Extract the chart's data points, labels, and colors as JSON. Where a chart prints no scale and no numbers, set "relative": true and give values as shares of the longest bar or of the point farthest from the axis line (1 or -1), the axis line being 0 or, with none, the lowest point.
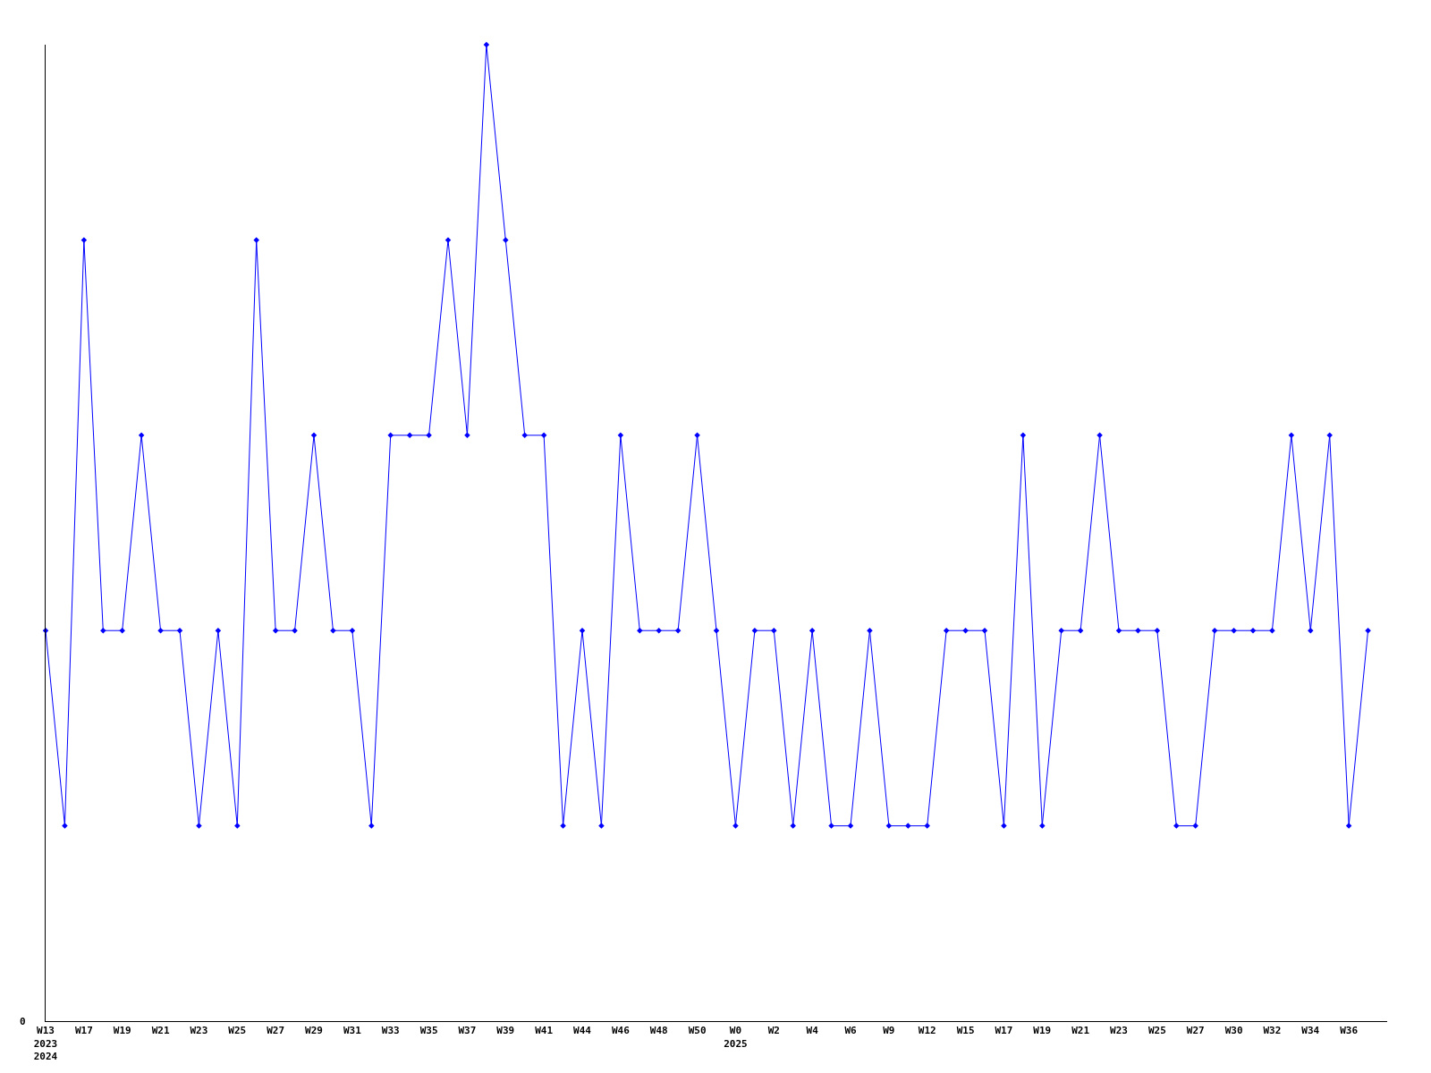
{
  "chart_data": {
    "type": "line",
    "relative": true,
    "marker": "diamond",
    "line_style": "solid",
    "legend": false,
    "annotations": [
      "0"
    ],
    "categories": [
      "W13\n2023\n2024",
      null,
      "W17",
      null,
      "W19",
      null,
      "W21",
      null,
      "W23",
      null,
      "W25",
      null,
      "W27",
      null,
      "W29",
      null,
      "W31",
      null,
      "W33",
      null,
      "W35",
      null,
      "W37",
      null,
      "W39",
      null,
      "W41",
      null,
      "W44",
      null,
      "W46",
      null,
      "W48",
      null,
      "W50",
      null,
      "W0\n2025",
      null,
      "W2",
      null,
      "W4",
      null,
      "W6",
      null,
      "W9",
      null,
      "W12",
      null,
      "W15",
      null,
      "W17",
      null,
      "W19",
      null,
      "W21",
      null,
      "W23",
      null,
      "W25",
      null,
      "W27",
      null,
      "W30",
      null,
      "W32",
      null,
      "W34",
      null,
      "W36",
      null
    ],
    "series": [
      {
        "color": "#0000ff",
        "values": [
          0.4,
          0.2,
          0.8,
          0.4,
          0.4,
          0.6,
          0.4,
          0.4,
          0.2,
          0.4,
          0.2,
          0.8,
          0.4,
          0.4,
          0.6,
          0.4,
          0.4,
          0.2,
          0.6,
          0.6,
          0.6,
          0.8,
          0.6,
          1,
          0.8,
          0.6,
          0.6,
          0.2,
          0.4,
          0.2,
          0.6,
          0.4,
          0.4,
          0.4,
          0.6,
          0.4,
          0.2,
          0.4,
          0.4,
          0.2,
          0.4,
          0.2,
          0.2,
          0.4,
          0.2,
          0.2,
          0.2,
          0.4,
          0.4,
          0.4,
          0.2,
          0.6,
          0.2,
          0.4,
          0.4,
          0.6,
          0.4,
          0.4,
          0.4,
          0.2,
          0.2,
          0.4,
          0.4,
          0.4,
          0.4,
          0.6,
          0.4,
          0.6,
          0.2,
          0.4
        ]
      }
    ]
  }
}
